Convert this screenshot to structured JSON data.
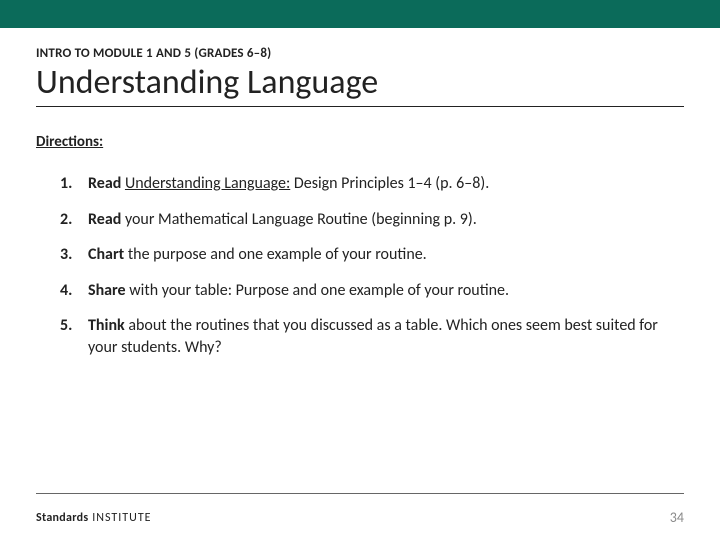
{
  "colors": {
    "topbar": "#0b6b5a",
    "text": "#222222",
    "rule": "#666666",
    "pagenum": "#8a8a8a",
    "background": "#ffffff"
  },
  "eyebrow": "INTRO TO MODULE 1 AND 5 (GRADES 6–8)",
  "title": "Understanding Language",
  "directions_label": "Directions:",
  "items": [
    {
      "lead": "Read ",
      "ul": "Understanding Language:",
      "mid": " Design Principles 1–4 (p. 6–8)."
    },
    {
      "lead": "Read ",
      "rest": "your Mathematical Language Routine (beginning p. 9)."
    },
    {
      "lead": "Chart ",
      "rest": "the purpose and one example of your routine."
    },
    {
      "lead": "Share ",
      "rest": "with your table: Purpose and one example of your routine."
    },
    {
      "lead": "Think ",
      "rest": "about the routines that you discussed as a table. Which ones seem best suited for your students. Why?"
    }
  ],
  "brand": {
    "b1": "Standards",
    "b2": " INSTITUTE"
  },
  "page_number": "34"
}
